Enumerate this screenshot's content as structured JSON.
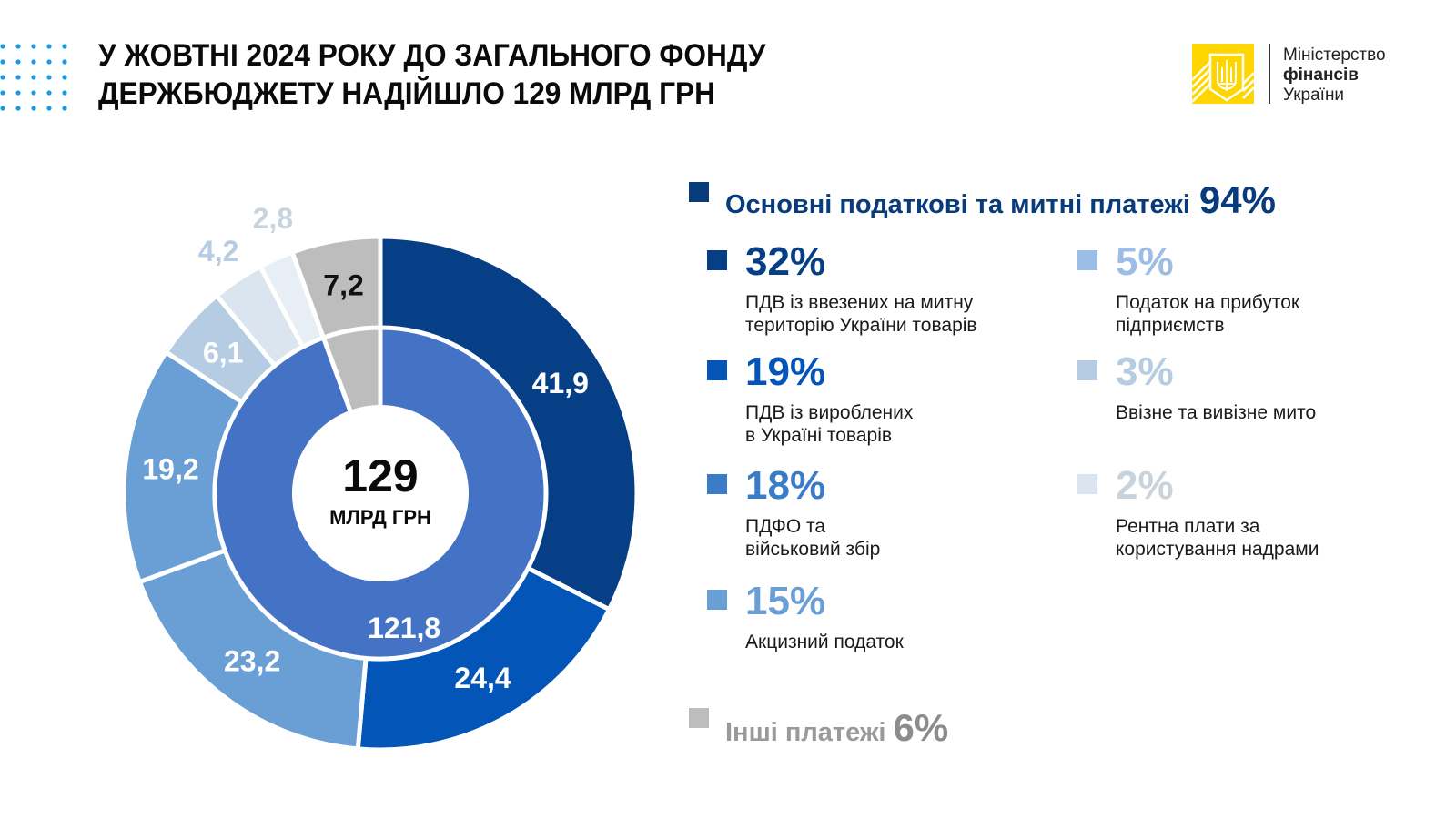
{
  "header": {
    "title_line1": "У ЖОВТНІ 2024 РОКУ ДО ЗАГАЛЬНОГО ФОНДУ",
    "title_line2": "ДЕРЖБЮДЖЕТУ НАДІЙШЛО 129 МЛРД ГРН"
  },
  "logo": {
    "line1": "Міністерство",
    "line2": "фінансів",
    "line3": "України",
    "icon": "trident-emblem-icon",
    "color": "#FFD500"
  },
  "colors": {
    "dots": "#1a9ae0",
    "dark_blue": "#073f87",
    "blue": "#0455b8",
    "mid_blue": "#3a7cc8",
    "light_blue": "#6a9fd6",
    "pale_blue": "#9dbde6",
    "paler_blue": "#b5cce3",
    "palest_blue": "#dbe5ef",
    "ultra_pale": "#e7eef6",
    "grey": "#bdbdbd",
    "inner_blue": "#4472c4"
  },
  "chart_data": {
    "type": "pie",
    "subtype": "nested-donut",
    "title": "У ЖОВТНІ 2024 РОКУ ДО ЗАГАЛЬНОГО ФОНДУ ДЕРЖБЮДЖЕТУ НАДІЙШЛО 129 МЛРД ГРН",
    "center_value": "129",
    "center_unit": "МЛРД ГРН",
    "total": 129,
    "inner_ring": [
      {
        "name": "Основні податкові та митні платежі",
        "value": 121.8,
        "label": "121,8",
        "color": "#4472c4"
      },
      {
        "name": "Інші платежі",
        "value": 7.2,
        "label": "",
        "color": "#bdbdbd"
      }
    ],
    "outer_ring": [
      {
        "name": "ПДВ із ввезених на митну територію України товарів",
        "value": 41.9,
        "label": "41,9",
        "color": "#073f87",
        "label_color": "#ffffff"
      },
      {
        "name": "ПДВ із вироблених в Україні товарів",
        "value": 24.4,
        "label": "24,4",
        "color": "#0455b8",
        "label_color": "#ffffff"
      },
      {
        "name": "ПДФО та військовий збір",
        "value": 23.2,
        "label": "23,2",
        "color": "#6a9fd6",
        "label_color": "#ffffff"
      },
      {
        "name": "Акцизний податок",
        "value": 19.2,
        "label": "19,2",
        "color": "#6a9fd6",
        "label_color": "#ffffff"
      },
      {
        "name": "Податок на прибуток підприємств",
        "value": 6.1,
        "label": "6,1",
        "color": "#b5cce3",
        "label_color": "#ffffff"
      },
      {
        "name": "Ввізне та вивізне мито",
        "value": 4.2,
        "label": "4,2",
        "color": "#dbe5ef",
        "label_color": "#b5cce3"
      },
      {
        "name": "Рентна плати за користування надрами",
        "value": 2.8,
        "label": "2,8",
        "color": "#e7eef6",
        "label_color": "#c9d3dc"
      },
      {
        "name": "Інші платежі",
        "value": 7.2,
        "label": "7,2",
        "color": "#bdbdbd",
        "label_color": "#111111"
      }
    ]
  },
  "legend": {
    "main": {
      "label": "Основні податкові та митні платежі",
      "pct": "94%",
      "color": "#073b7c"
    },
    "items": [
      {
        "pct": "32%",
        "desc1": "ПДВ із ввезених на митну",
        "desc2": "територію України товарів",
        "color": "#073f87",
        "pct_color": "#073f87"
      },
      {
        "pct": "19%",
        "desc1": "ПДВ із вироблених",
        "desc2": "в Україні товарів",
        "color": "#0455b8",
        "pct_color": "#0455b8"
      },
      {
        "pct": "18%",
        "desc1": "ПДФО та",
        "desc2": "військовий збір",
        "color": "#3a7cc8",
        "pct_color": "#3a7cc8"
      },
      {
        "pct": "15%",
        "desc1": "Акцизний податок",
        "desc2": "",
        "color": "#6a9fd6",
        "pct_color": "#6a9fd6"
      },
      {
        "pct": "5%",
        "desc1": "Податок на прибуток",
        "desc2": "підприємств",
        "color": "#9dbde6",
        "pct_color": "#9dbde6"
      },
      {
        "pct": "3%",
        "desc1": "Ввізне та вивізне мито",
        "desc2": "",
        "color": "#b5cce3",
        "pct_color": "#b5cce3"
      },
      {
        "pct": "2%",
        "desc1": "Рентна плати за",
        "desc2": "користування надрами",
        "color": "#dbe5ef",
        "pct_color": "#c9d3dc"
      }
    ],
    "other": {
      "label": "Інші платежі",
      "pct": "6%",
      "color": "#bdbdbd"
    }
  }
}
